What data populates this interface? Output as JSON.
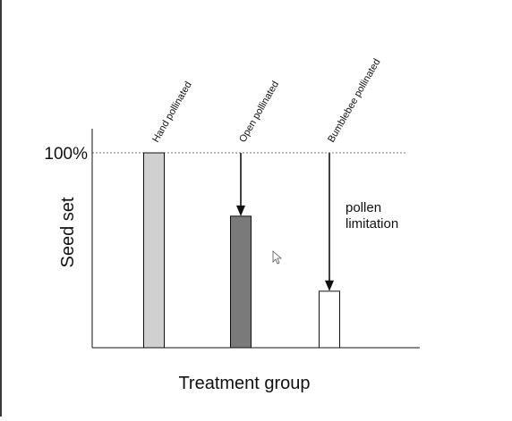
{
  "chart_data": {
    "type": "bar",
    "categories": [
      "Hand pollinated",
      "Open pollinated",
      "Bumblebee pollinated"
    ],
    "values": [
      100,
      67.5,
      29
    ],
    "ylim": [
      0,
      100
    ],
    "xlabel": "Treatment group",
    "ylabel": "Seed set",
    "y_ref_label": "100%",
    "y_ref_value": 100,
    "annotation": {
      "line1": "pollen",
      "line2": "limitation"
    },
    "colors": {
      "bars": [
        "#d0d0d0",
        "#7a7a7a",
        "#ffffff"
      ],
      "bar_stroke": "#111111",
      "axis": "#111111",
      "reference_line": "#777777",
      "arrow": "#111111"
    },
    "grid": false,
    "reference_line_style": "dotted"
  }
}
